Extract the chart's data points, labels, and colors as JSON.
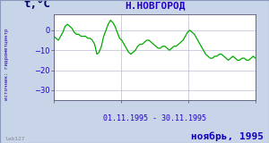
{
  "title": "Н.НОВГОРОД",
  "ylabel": "t,°C",
  "xlabel_range": "01.11.1995 - 30.11.1995",
  "footer_left": "lab127",
  "footer_right": "ноябрь, 1995",
  "source_label": "источник: гидрометцентр",
  "ylim": [
    -35,
    8
  ],
  "yticks": [
    0,
    -10,
    -20,
    -30
  ],
  "line_color": "#00aa00",
  "bg_color": "#c8d4e8",
  "plot_bg_color": "#ffffff",
  "grid_color": "#aaaacc",
  "title_color": "#2200cc",
  "footer_color": "#1100bb",
  "ylabel_color": "#000066",
  "axis_label_color": "#2200cc",
  "border_color": "#8899bb",
  "temperatures": [
    -3,
    -4,
    -5,
    -3,
    -1,
    2,
    3,
    2,
    1,
    -1,
    -2,
    -2,
    -3,
    -3,
    -3,
    -4,
    -4,
    -5,
    -7,
    -12,
    -11,
    -8,
    -3,
    0,
    3,
    5,
    4,
    2,
    -1,
    -4,
    -5,
    -7,
    -9,
    -11,
    -12,
    -11,
    -10,
    -8,
    -7,
    -7,
    -6,
    -5,
    -5,
    -6,
    -7,
    -8,
    -9,
    -9,
    -8,
    -8,
    -9,
    -10,
    -9,
    -8,
    -8,
    -7,
    -6,
    -5,
    -3,
    -1,
    0,
    -1,
    -2,
    -4,
    -6,
    -8,
    -10,
    -12,
    -13,
    -14,
    -14,
    -13,
    -13,
    -12,
    -12,
    -13,
    -14,
    -15,
    -14,
    -13,
    -14,
    -15,
    -15,
    -14,
    -14,
    -15,
    -15,
    -14,
    -13,
    -14
  ]
}
